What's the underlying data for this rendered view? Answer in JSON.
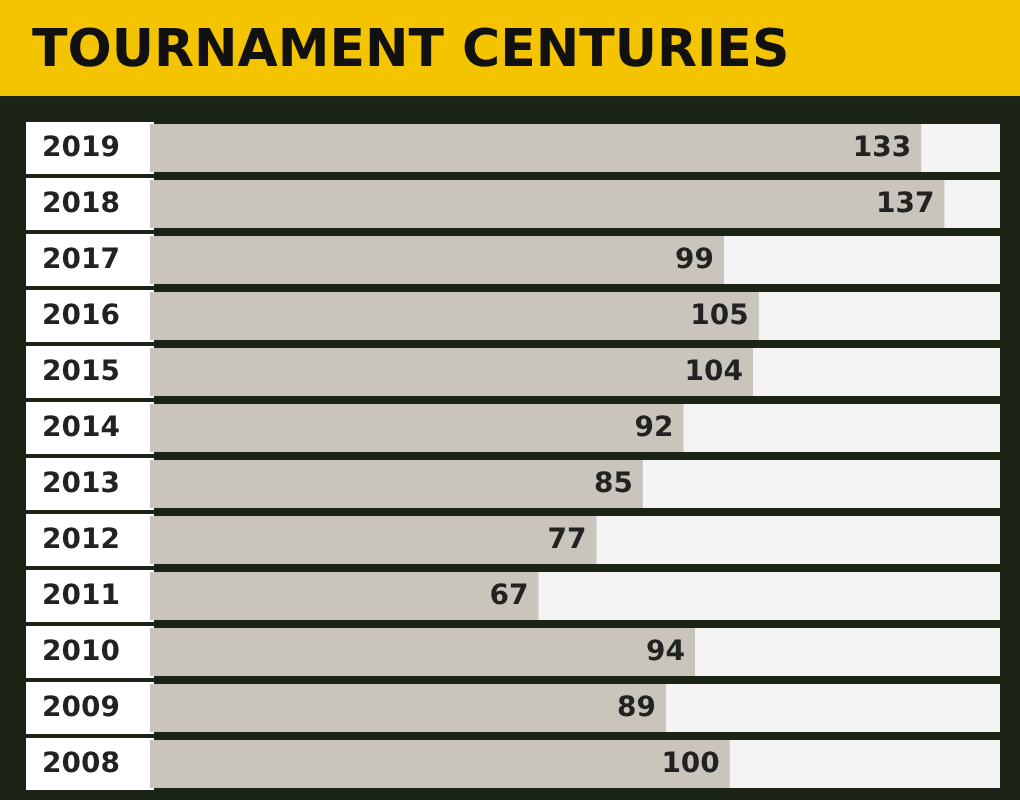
{
  "chart_data": {
    "type": "bar",
    "orientation": "horizontal",
    "title": "TOURNAMENT CENTURIES",
    "categories": [
      "2019",
      "2018",
      "2017",
      "2016",
      "2015",
      "2014",
      "2013",
      "2012",
      "2011",
      "2010",
      "2009",
      "2008"
    ],
    "values": [
      133,
      137,
      99,
      105,
      104,
      92,
      85,
      77,
      67,
      94,
      89,
      100
    ],
    "color": "#c9c5bc",
    "data_labels": true
  }
}
